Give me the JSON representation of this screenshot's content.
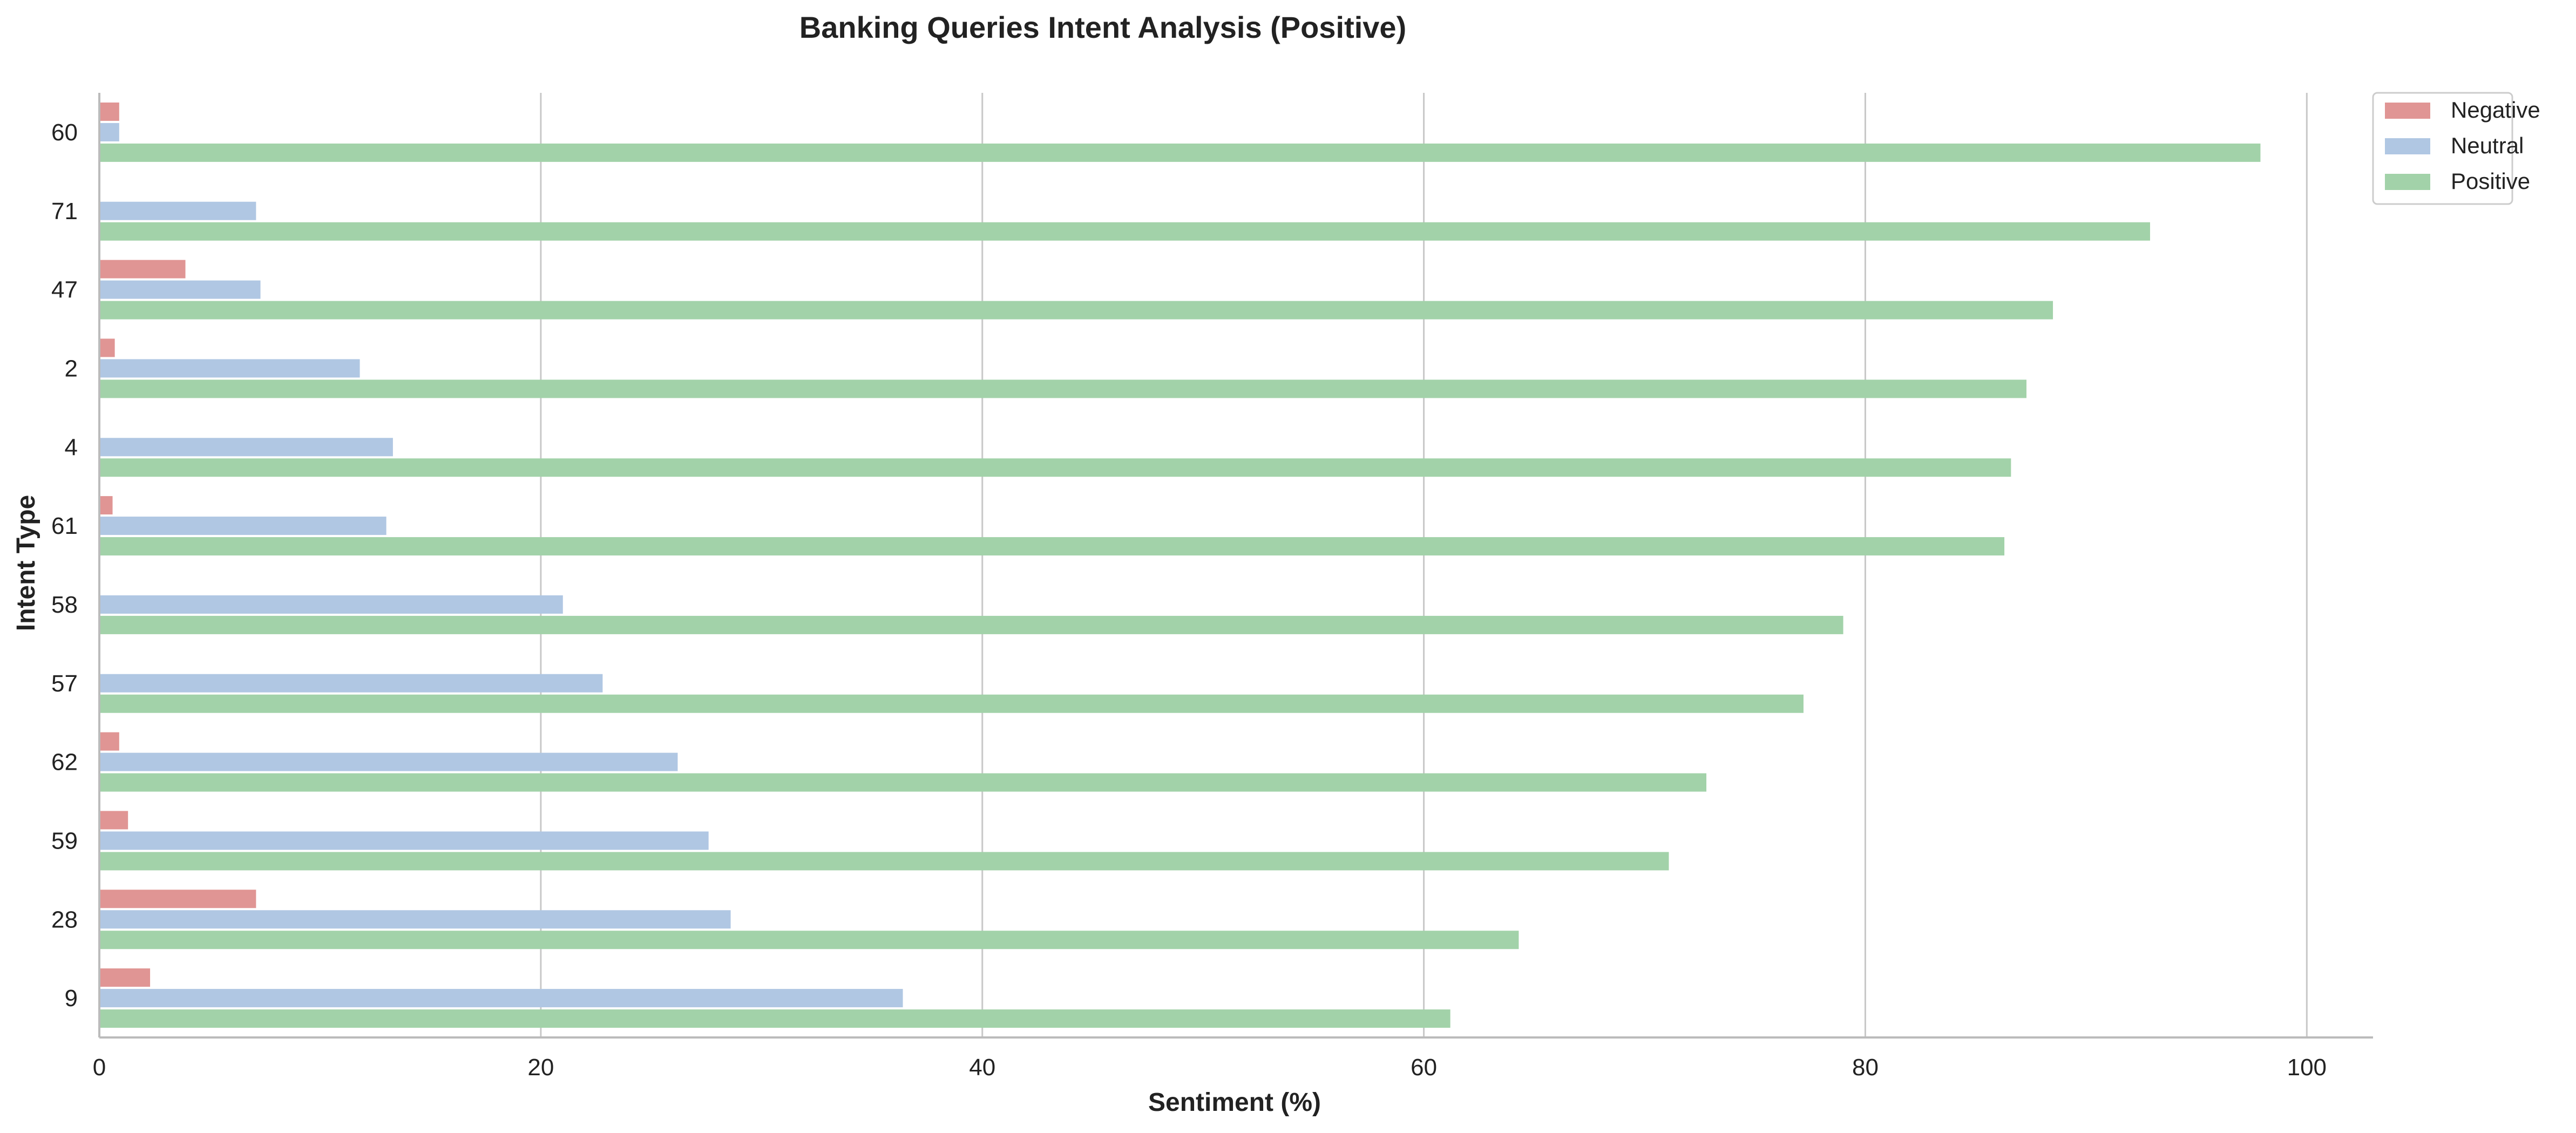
{
  "chart_data": {
    "type": "bar",
    "orientation": "horizontal",
    "title": "Banking Queries Intent Analysis (Positive)",
    "xlabel": "Sentiment (%)",
    "ylabel": "Intent Type",
    "xlim": [
      0,
      103
    ],
    "xticks": [
      0,
      20,
      40,
      60,
      80,
      100
    ],
    "grid": "vertical",
    "legend_position": "top-right",
    "categories": [
      "60",
      "71",
      "47",
      "2",
      "4",
      "61",
      "58",
      "57",
      "62",
      "59",
      "28",
      "9"
    ],
    "series": [
      {
        "name": "Negative",
        "color": "#e09594",
        "values": [
          0.9,
          0,
          3.9,
          0.7,
          0,
          0.6,
          0,
          0,
          0.9,
          1.3,
          7.1,
          2.3
        ]
      },
      {
        "name": "Neutral",
        "color": "#b0c7e3",
        "values": [
          0.9,
          7.1,
          7.3,
          11.8,
          13.3,
          13.0,
          21.0,
          22.8,
          26.2,
          27.6,
          28.6,
          36.4
        ]
      },
      {
        "name": "Positive",
        "color": "#a2d2a9",
        "values": [
          97.9,
          92.9,
          88.5,
          87.3,
          86.6,
          86.3,
          79.0,
          77.2,
          72.8,
          71.1,
          64.3,
          61.2
        ]
      }
    ]
  }
}
